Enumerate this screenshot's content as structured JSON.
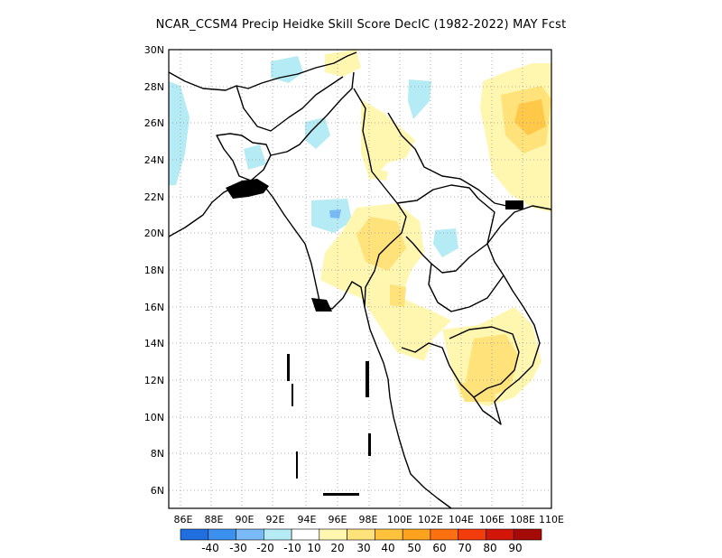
{
  "title": "NCAR_CCSM4 Precip Heidke Skill Score DecIC (1982-2022) MAY Fcst",
  "lat_labels": [
    "30N",
    "28N",
    "26N",
    "24N",
    "22N",
    "20N",
    "18N",
    "16N",
    "14N",
    "12N",
    "10N",
    "8N",
    "6N"
  ],
  "lon_labels": [
    "86E",
    "88E",
    "90E",
    "92E",
    "94E",
    "96E",
    "98E",
    "100E",
    "102E",
    "104E",
    "106E",
    "108E",
    "110E"
  ],
  "colorbar": {
    "labels": [
      "-40",
      "-30",
      "-20",
      "-10",
      "10",
      "20",
      "30",
      "40",
      "50",
      "60",
      "70",
      "80",
      "90"
    ],
    "colors": [
      "#1f6fe0",
      "#3c91f0",
      "#79b9f5",
      "#b4ebf5",
      "#ffffff",
      "#fff7b0",
      "#ffe27a",
      "#ffc23c",
      "#ffa21e",
      "#ff7010",
      "#f23c0c",
      "#d2160a",
      "#a50a06"
    ]
  },
  "map": {
    "domain": {
      "lon_min": 85,
      "lon_max": 110,
      "lat_min": 5,
      "lat_max": 30
    },
    "gridlines": "dotted",
    "features": [
      "coastline",
      "country-borders"
    ]
  }
}
